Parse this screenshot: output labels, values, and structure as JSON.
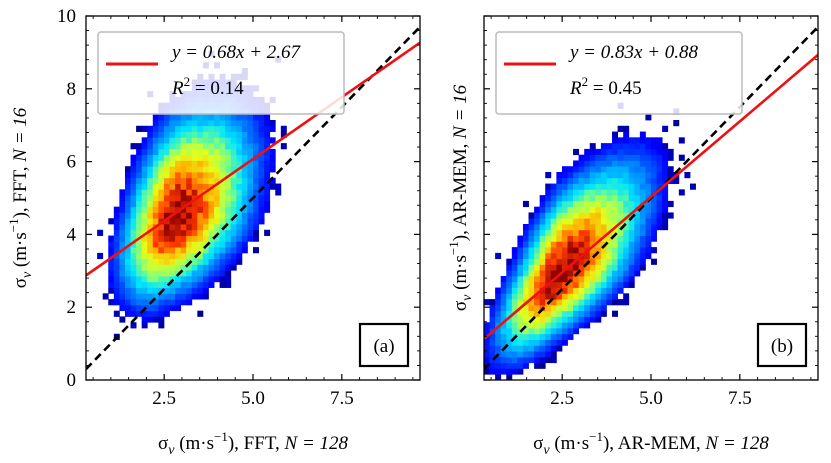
{
  "figure": {
    "colormap": [
      "#00007f",
      "#0000ff",
      "#0080ff",
      "#00e5ff",
      "#7fff7f",
      "#e5ff1a",
      "#ffb000",
      "#ff3800",
      "#8f0000"
    ]
  },
  "chart_data": [
    {
      "type": "heatmap",
      "panel_label": "(a)",
      "xlabel_prefix": "σ",
      "xlabel_sub": "v",
      "xlabel_units": " (m·s",
      "xlabel_exp": "−1",
      "xlabel_suffix": "), FFT, ",
      "xlabel_N": "N = 128",
      "ylabel_prefix": "σ",
      "ylabel_sub": "v",
      "ylabel_units": " (m·s",
      "ylabel_exp": "−1",
      "ylabel_suffix": "), FFT, ",
      "ylabel_N": "N = 16",
      "xlim": [
        0.3,
        9.7
      ],
      "ylim": [
        0,
        10
      ],
      "xticks": [
        2.5,
        5.0,
        7.5
      ],
      "xtick_labels": [
        "2.5",
        "5.0",
        "7.5"
      ],
      "yticks": [
        0,
        2,
        4,
        6,
        8,
        10
      ],
      "ytick_labels": [
        "0",
        "2",
        "4",
        "6",
        "8",
        "10"
      ],
      "density_center": [
        2.8,
        4.4
      ],
      "density_spread": [
        0.8,
        1.1
      ],
      "density_corr": 0.45,
      "fit": {
        "slope": 0.68,
        "intercept": 2.67,
        "color": "#ee1111"
      },
      "identity_line": {
        "slope": 1,
        "intercept": 0,
        "color": "#000000"
      },
      "legend": {
        "equation": "y = 0.68x + 2.67",
        "r2_label": "R",
        "r2_exp": "2",
        "r2_value": " = 0.14"
      }
    },
    {
      "type": "heatmap",
      "panel_label": "(b)",
      "xlabel_prefix": "σ",
      "xlabel_sub": "v",
      "xlabel_units": " (m·s",
      "xlabel_exp": "−1",
      "xlabel_suffix": "), AR-MEM, ",
      "xlabel_N": "N = 128",
      "ylabel_prefix": "σ",
      "ylabel_sub": "v",
      "ylabel_units": " (m·s",
      "ylabel_exp": "−1",
      "ylabel_suffix": "), AR-MEM, ",
      "ylabel_N": "N = 16",
      "xlim": [
        0.3,
        9.7
      ],
      "ylim": [
        0,
        10
      ],
      "xticks": [
        2.5,
        5.0,
        7.5
      ],
      "xtick_labels": [
        "2.5",
        "5.0",
        "7.5"
      ],
      "yticks": [
        0,
        2,
        4,
        6,
        8,
        10
      ],
      "ytick_labels": [
        "",
        "",
        "",
        "",
        "",
        ""
      ],
      "density_center": [
        2.4,
        2.9
      ],
      "density_spread": [
        0.9,
        1.1
      ],
      "density_corr": 0.7,
      "fit": {
        "slope": 0.83,
        "intercept": 0.88,
        "color": "#ee1111"
      },
      "identity_line": {
        "slope": 1,
        "intercept": 0,
        "color": "#000000"
      },
      "legend": {
        "equation": "y = 0.83x + 0.88",
        "r2_label": "R",
        "r2_exp": "2",
        "r2_value": " = 0.45"
      }
    }
  ]
}
